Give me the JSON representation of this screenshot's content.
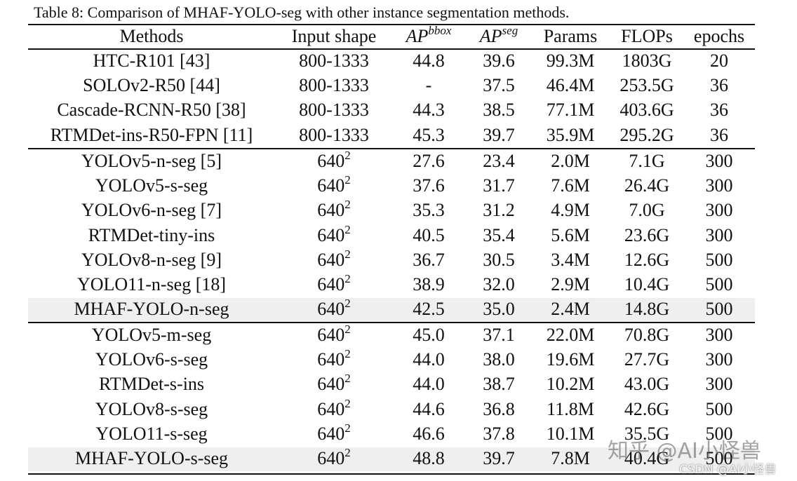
{
  "caption": "Table 8:   Comparison of MHAF-YOLO-seg with other instance segmentation methods.",
  "table": {
    "header": [
      "Methods",
      "Input shape",
      {
        "base": "AP",
        "sup": "bbox"
      },
      {
        "base": "AP",
        "sup": "seg"
      },
      "Params",
      "FLOPs",
      "epochs"
    ],
    "groups": [
      [
        [
          "HTC-R101 [43]",
          "800-1333",
          "44.8",
          "39.6",
          "99.3M",
          "1803G",
          "20"
        ],
        [
          "SOLOv2-R50 [44]",
          "800-1333",
          "-",
          "37.5",
          "46.4M",
          "253.5G",
          "36"
        ],
        [
          "Cascade-RCNN-R50 [38]",
          "800-1333",
          "44.3",
          "38.5",
          "77.1M",
          "403.6G",
          "36"
        ],
        [
          "RTMDet-ins-R50-FPN [11]",
          "800-1333",
          "45.3",
          "39.7",
          "35.9M",
          "295.2G",
          "36"
        ]
      ],
      [
        [
          "YOLOv5-n-seg [5]",
          {
            "base": "640",
            "sup": "2"
          },
          "27.6",
          "23.4",
          "2.0M",
          "7.1G",
          "300"
        ],
        [
          "YOLOv5-s-seg",
          {
            "base": "640",
            "sup": "2"
          },
          "37.6",
          "31.7",
          "7.6M",
          "26.4G",
          "300"
        ],
        [
          "YOLOv6-n-seg [7]",
          {
            "base": "640",
            "sup": "2"
          },
          "35.3",
          "31.2",
          "4.9M",
          "7.0G",
          "300"
        ],
        [
          "RTMDet-tiny-ins",
          {
            "base": "640",
            "sup": "2"
          },
          "40.5",
          "35.4",
          "5.6M",
          "23.6G",
          "300"
        ],
        [
          "YOLOv8-n-seg [9]",
          {
            "base": "640",
            "sup": "2"
          },
          "36.7",
          "30.5",
          "3.4M",
          "12.6G",
          "500"
        ],
        [
          "YOLO11-n-seg [18]",
          {
            "base": "640",
            "sup": "2"
          },
          "38.9",
          "32.0",
          "2.9M",
          "10.4G",
          "500"
        ],
        [
          "MHAF-YOLO-n-seg",
          {
            "base": "640",
            "sup": "2"
          },
          "42.5",
          "35.0",
          "2.4M",
          "14.8G",
          "500"
        ]
      ],
      [
        [
          "YOLOv5-m-seg",
          {
            "base": "640",
            "sup": "2"
          },
          "45.0",
          "37.1",
          "22.0M",
          "70.8G",
          "300"
        ],
        [
          "YOLOv6-s-seg",
          {
            "base": "640",
            "sup": "2"
          },
          "44.0",
          "38.0",
          "19.6M",
          "27.7G",
          "300"
        ],
        [
          "RTMDet-s-ins",
          {
            "base": "640",
            "sup": "2"
          },
          "44.0",
          "38.7",
          "10.2M",
          "43.0G",
          "300"
        ],
        [
          "YOLOv8-s-seg",
          {
            "base": "640",
            "sup": "2"
          },
          "44.6",
          "36.8",
          "11.8M",
          "42.6G",
          "500"
        ],
        [
          "YOLO11-s-seg",
          {
            "base": "640",
            "sup": "2"
          },
          "46.6",
          "37.8",
          "10.1M",
          "35.5G",
          "500"
        ],
        [
          "MHAF-YOLO-s-seg",
          {
            "base": "640",
            "sup": "2"
          },
          "48.8",
          "39.7",
          "7.8M",
          "40.4G",
          "500"
        ]
      ]
    ]
  },
  "watermarks": [
    "知乎 @AI小怪兽",
    "CSDN @AI小怪兽"
  ]
}
